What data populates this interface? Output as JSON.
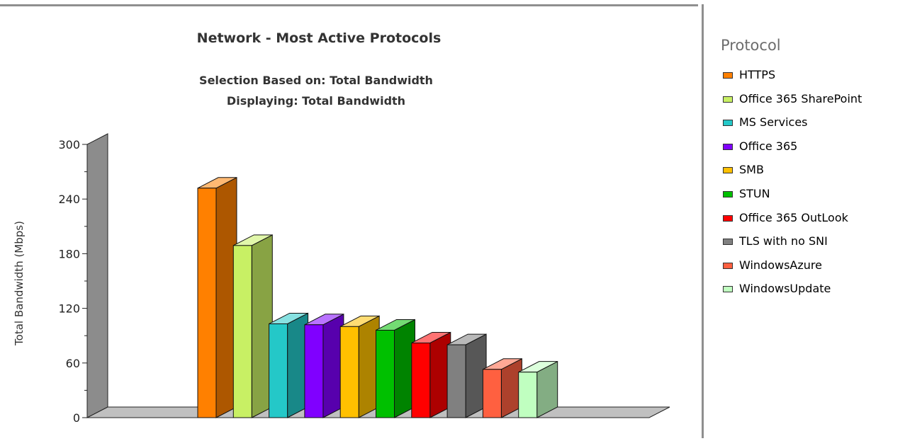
{
  "chart_data": {
    "type": "bar",
    "title": "Network - Most Active Protocols",
    "subtitle_lines": [
      "Selection Based on: Total Bandwidth",
      "Displaying: Total Bandwidth"
    ],
    "xlabel": "",
    "ylabel": "Total Bandwidth (Mbps)",
    "ylim": [
      0,
      300
    ],
    "yticks": [
      "0",
      "60",
      "120",
      "180",
      "240",
      "300"
    ],
    "categories": [
      "HTTPS",
      "Office 365 SharePoint",
      "MS Services",
      "Office 365",
      "SMB",
      "STUN",
      "Office 365 OutLook",
      "TLS with no SNI",
      "WindowsAzure",
      "WindowsUpdate"
    ],
    "values": [
      252,
      189,
      103,
      102,
      100,
      96,
      82,
      80,
      53,
      50
    ],
    "colors": [
      "#ff8000",
      "#c8f064",
      "#24c8c8",
      "#8000ff",
      "#ffc000",
      "#00c000",
      "#ff0000",
      "#808080",
      "#ff6040",
      "#c0ffc0"
    ],
    "legend": {
      "title": "Protocol",
      "position": "right"
    },
    "grid": false,
    "style": "3d-bar"
  }
}
